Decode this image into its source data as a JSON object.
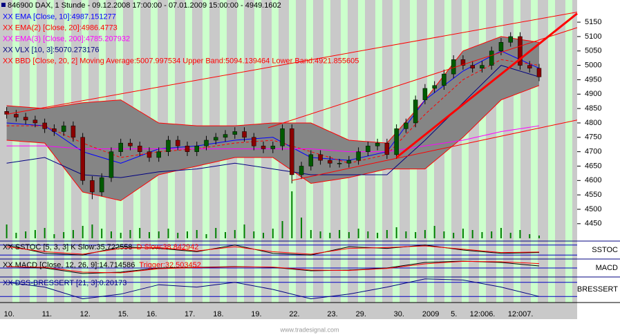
{
  "chart_data": [
    {
      "type": "candlestick",
      "title": "846900  DAX, 1 Stunde - 09.12.2008 17:00:00 - 07.01.2009 15:00:00 - 4949.1602",
      "categories": [
        "10.",
        null,
        null,
        null,
        "11.",
        null,
        null,
        null,
        "12.",
        null,
        null,
        null,
        "15.",
        null,
        null,
        "16.",
        null,
        null,
        null,
        "17.",
        null,
        null,
        "18.",
        null,
        null,
        null,
        "19.",
        null,
        null,
        null,
        "22.",
        null,
        null,
        null,
        "23.",
        null,
        null,
        "29.",
        null,
        null,
        null,
        "30.",
        null,
        null,
        "2009",
        null,
        null,
        "5.",
        null,
        "12:00",
        null,
        "6.",
        null,
        "12:00",
        null,
        "7.",
        null
      ],
      "open": [
        4840,
        4830,
        4820,
        4810,
        4800,
        4780,
        4770,
        4790,
        4750,
        4600,
        4560,
        4610,
        4700,
        4730,
        4720,
        4700,
        4680,
        4700,
        4740,
        4720,
        4700,
        4720,
        4740,
        4750,
        4760,
        4770,
        4750,
        4720,
        4710,
        4720,
        4780,
        4620,
        4650,
        4690,
        4670,
        4660,
        4660,
        4670,
        4700,
        4720,
        4730,
        4690,
        4780,
        4800,
        4880,
        4920,
        4930,
        4970,
        5020,
        5000,
        4990,
        5000,
        5050,
        5080,
        5100,
        5000,
        4990
      ],
      "high": [
        4855,
        4845,
        4835,
        4825,
        4815,
        4795,
        4805,
        4805,
        4765,
        4615,
        4625,
        4715,
        4745,
        4745,
        4735,
        4715,
        4715,
        4755,
        4755,
        4735,
        4735,
        4755,
        4765,
        4775,
        4785,
        4785,
        4765,
        4735,
        4735,
        4795,
        4795,
        4665,
        4705,
        4705,
        4685,
        4675,
        4685,
        4715,
        4735,
        4745,
        4745,
        4795,
        4815,
        4895,
        4935,
        4945,
        4985,
        5035,
        5035,
        5015,
        5015,
        5065,
        5095,
        5115,
        5115,
        5015,
        5005
      ],
      "low": [
        4815,
        4805,
        4795,
        4785,
        4765,
        4755,
        4755,
        4735,
        4585,
        4535,
        4545,
        4595,
        4685,
        4705,
        4685,
        4665,
        4665,
        4685,
        4705,
        4685,
        4685,
        4705,
        4725,
        4735,
        4745,
        4735,
        4705,
        4695,
        4695,
        4705,
        4590,
        4605,
        4635,
        4655,
        4645,
        4645,
        4645,
        4655,
        4685,
        4705,
        4675,
        4675,
        4765,
        4785,
        4865,
        4905,
        4915,
        4955,
        4985,
        4975,
        4975,
        4985,
        5035,
        5065,
        4985,
        4975,
        4945
      ],
      "close": [
        4830,
        4820,
        4810,
        4800,
        4780,
        4770,
        4790,
        4750,
        4600,
        4560,
        4610,
        4700,
        4730,
        4720,
        4700,
        4680,
        4700,
        4740,
        4720,
        4700,
        4720,
        4740,
        4750,
        4760,
        4770,
        4750,
        4720,
        4710,
        4720,
        4780,
        4620,
        4650,
        4690,
        4670,
        4660,
        4660,
        4670,
        4700,
        4720,
        4730,
        4690,
        4780,
        4800,
        4880,
        4920,
        4930,
        4970,
        5020,
        5000,
        4990,
        5000,
        5050,
        5080,
        5100,
        5000,
        4990,
        4960
      ],
      "up_color": "#005a00",
      "down_color": "#8b0000",
      "series": [
        {
          "name": "XX EMA [Close, 10]:4987.151277",
          "color": "#0000ff",
          "x": [
            0,
            4,
            8,
            12,
            16,
            20,
            24,
            28,
            32,
            36,
            40,
            44,
            48,
            52,
            56
          ],
          "values": [
            4800,
            4790,
            4700,
            4660,
            4710,
            4720,
            4740,
            4750,
            4680,
            4670,
            4700,
            4880,
            4980,
            5050,
            4990
          ]
        },
        {
          "name": "XX EMA(2) [Close, 20]:4986.4773",
          "color": "#ff0000",
          "dashed": true,
          "x": [
            0,
            4,
            8,
            12,
            16,
            20,
            24,
            28,
            32,
            36,
            40,
            44,
            48,
            52,
            56
          ],
          "values": [
            4790,
            4790,
            4730,
            4680,
            4700,
            4710,
            4730,
            4740,
            4700,
            4660,
            4690,
            4830,
            4950,
            5020,
            5000
          ]
        },
        {
          "name": "XX EMA(3) [Close, 200]:4785.207932",
          "color": "#ff00ff",
          "x": [
            0,
            4,
            8,
            12,
            16,
            20,
            24,
            28,
            32,
            36,
            40,
            44,
            48,
            52,
            56
          ],
          "values": [
            4720,
            4720,
            4710,
            4710,
            4710,
            4710,
            4710,
            4710,
            4710,
            4700,
            4700,
            4720,
            4740,
            4770,
            4790
          ]
        },
        {
          "name": "XX VLX [10, 3]:5070.273176",
          "color": "#000080",
          "x": [
            0,
            4,
            8,
            12,
            16,
            20,
            24,
            28,
            32,
            36,
            40,
            44,
            48,
            52,
            56
          ],
          "values": [
            4660,
            4680,
            4620,
            4610,
            4630,
            4640,
            4660,
            4640,
            4620,
            4620,
            4620,
            4740,
            4870,
            5000,
            4960
          ]
        },
        {
          "name": "XX BBD [Close, 20, 2] Moving Average:5007.997534 Upper Band:5094.139464 Lower Band:4921.855605",
          "color": "#ff0000",
          "fill": "#858585",
          "x": [
            0,
            4,
            8,
            12,
            16,
            20,
            24,
            28,
            32,
            36,
            40,
            44,
            48,
            52,
            56
          ],
          "upper": [
            4860,
            4850,
            4870,
            4880,
            4800,
            4790,
            4790,
            4800,
            4800,
            4740,
            4730,
            4880,
            5050,
            5100,
            5080
          ],
          "lower": [
            4740,
            4730,
            4560,
            4530,
            4620,
            4650,
            4680,
            4680,
            4590,
            4610,
            4640,
            4640,
            4750,
            4880,
            4930
          ]
        }
      ],
      "trendlines": [
        {
          "color": "#ff0000",
          "width": 1,
          "x": [
            0,
            60
          ],
          "values": [
            4830,
            5185
          ]
        },
        {
          "color": "#ff0000",
          "width": 1,
          "x": [
            27.5,
            60
          ],
          "values": [
            4783,
            5131
          ]
        },
        {
          "color": "#ff0000",
          "width": 1,
          "x": [
            30,
            60
          ],
          "values": [
            4600,
            4810
          ]
        },
        {
          "color": "#ff0000",
          "width": 3,
          "x": [
            41,
            60
          ],
          "values": [
            4680,
            5180
          ]
        }
      ],
      "volume": {
        "color": "#008000",
        "vlim": [
          0,
          100
        ],
        "values": [
          20,
          8,
          10,
          12,
          15,
          6,
          9,
          12,
          18,
          20,
          14,
          10,
          8,
          12,
          15,
          9,
          10,
          14,
          8,
          10,
          12,
          6,
          15,
          9,
          12,
          20,
          10,
          8,
          14,
          25,
          68,
          30,
          12,
          10,
          8,
          12,
          9,
          14,
          10,
          8,
          12,
          16,
          10,
          9,
          12,
          18,
          10,
          8,
          14,
          12,
          9,
          10,
          15,
          8,
          12,
          6,
          4
        ]
      },
      "xlim": [
        -0.7,
        60
      ],
      "ylim": [
        4392,
        5227
      ],
      "yticks": [
        4450,
        4500,
        4550,
        4600,
        4650,
        4700,
        4750,
        4800,
        4850,
        4900,
        4950,
        5000,
        5050,
        5100,
        5150
      ]
    },
    {
      "type": "line",
      "panel_label": "SSTOC",
      "xlim": [
        -0.7,
        60
      ],
      "ylim": [
        0,
        100
      ],
      "levels": [
        20,
        80
      ],
      "series": [
        {
          "name": "XX SSTOC [5, 3, 3] K Slow:35.722558",
          "color": "#000000",
          "x": [
            0,
            4,
            8,
            12,
            16,
            20,
            24,
            28,
            32,
            36,
            40,
            44,
            48,
            52,
            56
          ],
          "values": [
            80,
            30,
            20,
            70,
            60,
            40,
            80,
            30,
            20,
            70,
            60,
            80,
            50,
            30,
            35
          ]
        },
        {
          "name": "D Slow:38.842942",
          "color": "#ff0000",
          "x": [
            0,
            4,
            8,
            12,
            16,
            20,
            24,
            28,
            32,
            36,
            40,
            44,
            48,
            52,
            56
          ],
          "values": [
            70,
            40,
            25,
            60,
            65,
            45,
            70,
            40,
            25,
            60,
            65,
            75,
            55,
            35,
            38
          ]
        }
      ]
    },
    {
      "type": "line",
      "panel_label": "MACD",
      "xlim": [
        -0.7,
        60
      ],
      "ylim": [
        -60,
        60
      ],
      "levels": [
        0
      ],
      "series": [
        {
          "name": "XX MACD [Close, 12, 26, 9]:14.714586",
          "color": "#000000",
          "x": [
            0,
            4,
            8,
            12,
            16,
            20,
            24,
            28,
            32,
            36,
            40,
            44,
            48,
            52,
            56
          ],
          "values": [
            10,
            0,
            -40,
            -30,
            0,
            5,
            10,
            5,
            -20,
            -15,
            0,
            40,
            50,
            40,
            15
          ]
        },
        {
          "name": "Trigger:32.503452",
          "color": "#ff0000",
          "x": [
            0,
            4,
            8,
            12,
            16,
            20,
            24,
            28,
            32,
            36,
            40,
            44,
            48,
            52,
            56
          ],
          "values": [
            10,
            5,
            -30,
            -35,
            -5,
            3,
            8,
            7,
            -15,
            -18,
            -3,
            30,
            48,
            45,
            32
          ]
        }
      ]
    },
    {
      "type": "line",
      "panel_label": "BRESSERT",
      "xlim": [
        -0.7,
        60
      ],
      "ylim": [
        0,
        1
      ],
      "levels": [
        0.2,
        0.8
      ],
      "series": [
        {
          "name": "XX DSS-BRESSERT [21, 3]:0.20173",
          "color": "#000080",
          "x": [
            0,
            4,
            8,
            12,
            16,
            20,
            24,
            28,
            32,
            36,
            40,
            44,
            48,
            52,
            56
          ],
          "values": [
            0.8,
            0.6,
            0.1,
            0.3,
            0.7,
            0.6,
            0.8,
            0.5,
            0.1,
            0.3,
            0.6,
            0.95,
            0.9,
            0.6,
            0.2
          ]
        }
      ]
    }
  ],
  "footer": "www.tradesignal.com"
}
